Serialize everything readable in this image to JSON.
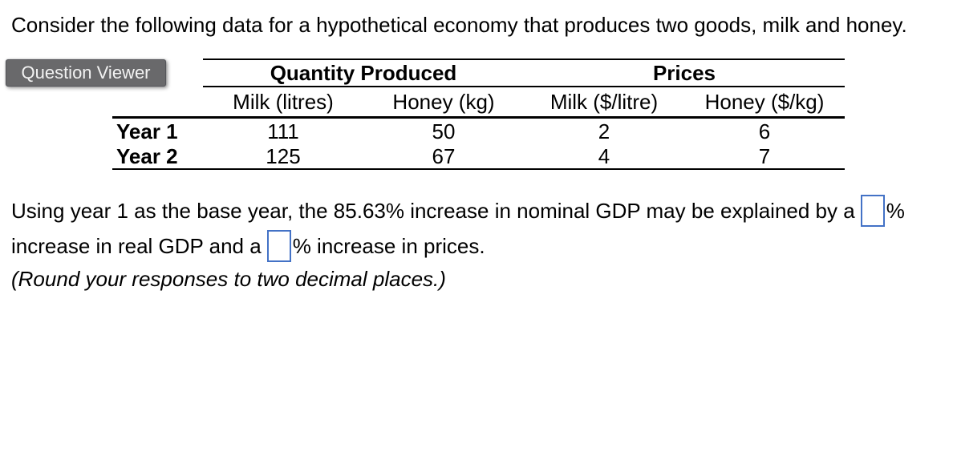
{
  "intro": "Consider the following data for a hypothetical economy that produces two goods, milk and honey.",
  "question_viewer_button": "Question Viewer",
  "table": {
    "group_headers": [
      "Quantity Produced",
      "Prices"
    ],
    "column_headers": [
      "Milk (litres)",
      "Honey (kg)",
      "Milk ($/litre)",
      "Honey ($/kg)"
    ],
    "rows": [
      {
        "label": "Year 1",
        "values": [
          "111",
          "50",
          "2",
          "6"
        ]
      },
      {
        "label": "Year 2",
        "values": [
          "125",
          "67",
          "4",
          "7"
        ]
      }
    ]
  },
  "question": {
    "line1_text": "Using year 1 as the base year, the 85.63% increase in nominal GDP may be explained by a",
    "line1_unit": "%",
    "line2_text": "increase in real GDP and a",
    "line2_unit": "% increase in prices.",
    "note": "(Round your responses to two decimal places.)",
    "real_gdp_input_value": "",
    "prices_input_value": ""
  },
  "colors": {
    "accent_blue": "#4372C6",
    "button_bg": "#69696B",
    "button_text": "#F2F2F2"
  }
}
